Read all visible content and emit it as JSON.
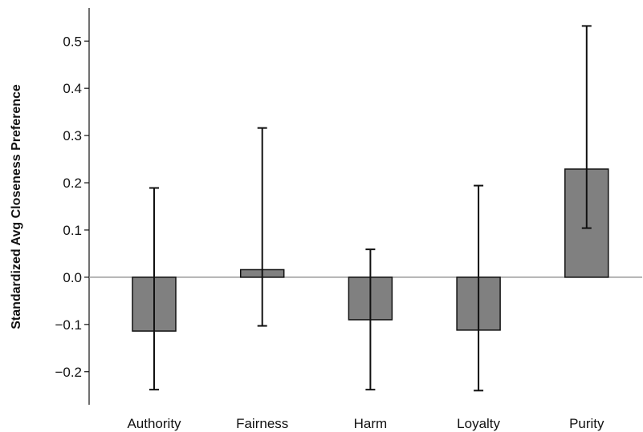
{
  "chart_data": {
    "type": "bar",
    "title": "",
    "xlabel": "",
    "ylabel": "Standardized Avg Closeness Preference",
    "categories": [
      "Authority",
      "Fairness",
      "Harm",
      "Loyalty",
      "Purity"
    ],
    "values": [
      -0.114,
      0.016,
      -0.09,
      -0.112,
      0.229
    ],
    "error_low": [
      -0.238,
      -0.103,
      -0.238,
      -0.24,
      0.104
    ],
    "error_high": [
      0.189,
      0.316,
      0.059,
      0.194,
      0.532
    ],
    "ylim": [
      -0.27,
      0.57
    ],
    "yticks": [
      -0.2,
      -0.1,
      0.0,
      0.1,
      0.2,
      0.3,
      0.4,
      0.5
    ],
    "ytick_labels": [
      "−0.2",
      "−0.1",
      "0.0",
      "0.1",
      "0.2",
      "0.3",
      "0.4",
      "0.5"
    ],
    "grid": false,
    "bar_color": "#808080",
    "zero_line_color": "#999999"
  }
}
